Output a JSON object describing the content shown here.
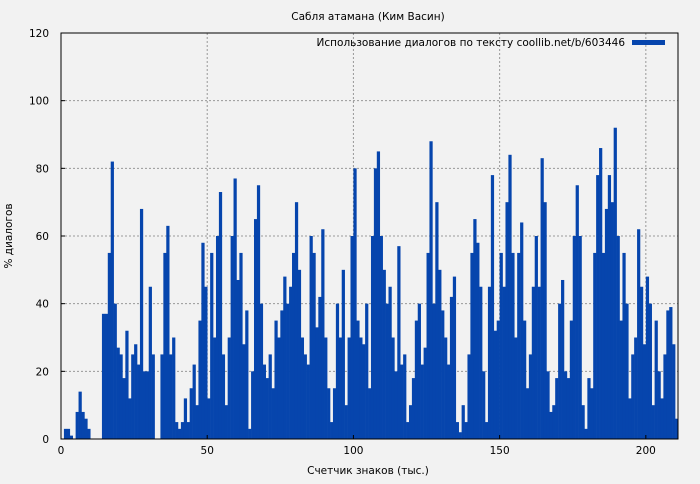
{
  "chart_data": {
    "type": "bar",
    "title": "Сабля атамана (Ким Васин)",
    "xlabel": "Счетчик знаков (тыс.)",
    "ylabel": "% диалогов",
    "xlim": [
      0,
      211
    ],
    "ylim": [
      0,
      120
    ],
    "xticks": [
      "0",
      "50",
      "100",
      "150",
      "200"
    ],
    "yticks": [
      "0",
      "20",
      "40",
      "60",
      "80",
      "100",
      "120"
    ],
    "grid": true,
    "legend_position": "top-right",
    "series": [
      {
        "name": "Использование диалогов по тексту coollib.net/b/603446",
        "color": "#0645ad",
        "x": [
          0,
          1,
          2,
          3,
          4,
          5,
          6,
          7,
          8,
          9,
          10,
          11,
          12,
          13,
          14,
          15,
          16,
          17,
          18,
          19,
          20,
          21,
          22,
          23,
          24,
          25,
          26,
          27,
          28,
          29,
          30,
          31,
          32,
          33,
          34,
          35,
          36,
          37,
          38,
          39,
          40,
          41,
          42,
          43,
          44,
          45,
          46,
          47,
          48,
          49,
          50,
          51,
          52,
          53,
          54,
          55,
          56,
          57,
          58,
          59,
          60,
          61,
          62,
          63,
          64,
          65,
          66,
          67,
          68,
          69,
          70,
          71,
          72,
          73,
          74,
          75,
          76,
          77,
          78,
          79,
          80,
          81,
          82,
          83,
          84,
          85,
          86,
          87,
          88,
          89,
          90,
          91,
          92,
          93,
          94,
          95,
          96,
          97,
          98,
          99,
          100,
          101,
          102,
          103,
          104,
          105,
          106,
          107,
          108,
          109,
          110,
          111,
          112,
          113,
          114,
          115,
          116,
          117,
          118,
          119,
          120,
          121,
          122,
          123,
          124,
          125,
          126,
          127,
          128,
          129,
          130,
          131,
          132,
          133,
          134,
          135,
          136,
          137,
          138,
          139,
          140,
          141,
          142,
          143,
          144,
          145,
          146,
          147,
          148,
          149,
          150,
          151,
          152,
          153,
          154,
          155,
          156,
          157,
          158,
          159,
          160,
          161,
          162,
          163,
          164,
          165,
          166,
          167,
          168,
          169,
          170,
          171,
          172,
          173,
          174,
          175,
          176,
          177,
          178,
          179,
          180,
          181,
          182,
          183,
          184,
          185,
          186,
          187,
          188,
          189,
          190,
          191,
          192,
          193,
          194,
          195,
          196,
          197,
          198,
          199,
          200,
          201,
          202,
          203,
          204,
          205,
          206,
          207,
          208,
          209,
          210
        ],
        "values": [
          0,
          3,
          3,
          1,
          0,
          8,
          14,
          8,
          6,
          3,
          0,
          0,
          0,
          0,
          37,
          37,
          55,
          82,
          40,
          27,
          25,
          18,
          32,
          12,
          25,
          28,
          22,
          68,
          20,
          20,
          45,
          25,
          0,
          0,
          25,
          55,
          63,
          25,
          30,
          5,
          3,
          5,
          12,
          5,
          15,
          22,
          10,
          35,
          58,
          45,
          12,
          55,
          30,
          60,
          73,
          25,
          10,
          30,
          60,
          77,
          47,
          55,
          28,
          38,
          3,
          20,
          65,
          75,
          40,
          22,
          18,
          25,
          15,
          35,
          30,
          38,
          48,
          40,
          45,
          55,
          70,
          50,
          30,
          25,
          22,
          60,
          55,
          33,
          42,
          62,
          30,
          15,
          5,
          15,
          40,
          30,
          50,
          10,
          30,
          60,
          80,
          35,
          30,
          28,
          40,
          15,
          60,
          80,
          85,
          60,
          50,
          40,
          45,
          30,
          20,
          57,
          22,
          25,
          5,
          10,
          18,
          35,
          40,
          22,
          27,
          55,
          88,
          40,
          70,
          50,
          38,
          30,
          22,
          42,
          48,
          5,
          2,
          10,
          5,
          25,
          55,
          65,
          58,
          45,
          20,
          5,
          45,
          78,
          32,
          35,
          55,
          45,
          70,
          84,
          55,
          30,
          55,
          64,
          35,
          15,
          25,
          45,
          60,
          45,
          83,
          70,
          20,
          8,
          10,
          18,
          40,
          47,
          20,
          18,
          35,
          60,
          75,
          60,
          10,
          3,
          18,
          15,
          55,
          78,
          86,
          55,
          68,
          78,
          70,
          92,
          60,
          35,
          55,
          40,
          12,
          25,
          30,
          62,
          45,
          28,
          48,
          40,
          10,
          35,
          20,
          12,
          25,
          38,
          39,
          28,
          6
        ]
      }
    ]
  }
}
